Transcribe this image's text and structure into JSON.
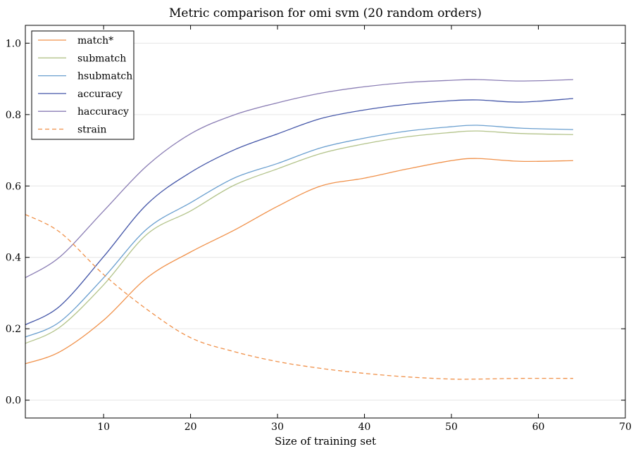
{
  "chart_data": {
    "type": "line",
    "title": "Metric comparison for omi svm (20 random orders)",
    "xlabel": "Size of training set",
    "ylabel": "",
    "xlim": [
      1,
      70
    ],
    "ylim": [
      -0.05,
      1.05
    ],
    "xticks": [
      10,
      20,
      30,
      40,
      50,
      60,
      70
    ],
    "yticks": [
      0.0,
      0.2,
      0.4,
      0.6,
      0.8,
      1.0
    ],
    "xtick_labels": [
      "10",
      "20",
      "30",
      "40",
      "50",
      "60",
      "70"
    ],
    "ytick_labels": [
      "0.0",
      "0.2",
      "0.4",
      "0.6",
      "0.8",
      "1.0"
    ],
    "grid": "horizontal",
    "legend_position": "top-left",
    "x": [
      1,
      5,
      10,
      15,
      20,
      25,
      30,
      35,
      40,
      45,
      50,
      53,
      58,
      64
    ],
    "series": [
      {
        "name": "match*",
        "color": "#f0914a",
        "dash": false,
        "values": [
          0.102,
          0.136,
          0.224,
          0.343,
          0.415,
          0.476,
          0.543,
          0.6,
          0.622,
          0.648,
          0.671,
          0.677,
          0.669,
          0.671
        ]
      },
      {
        "name": "submatch",
        "color": "#b3c38a",
        "dash": false,
        "values": [
          0.159,
          0.205,
          0.323,
          0.465,
          0.53,
          0.602,
          0.648,
          0.691,
          0.718,
          0.738,
          0.75,
          0.754,
          0.747,
          0.744
        ]
      },
      {
        "name": "hsubmatch",
        "color": "#6a9fcf",
        "dash": false,
        "values": [
          0.177,
          0.22,
          0.343,
          0.48,
          0.553,
          0.622,
          0.663,
          0.707,
          0.734,
          0.754,
          0.766,
          0.77,
          0.762,
          0.758
        ]
      },
      {
        "name": "accuracy",
        "color": "#4456a8",
        "dash": false,
        "values": [
          0.211,
          0.264,
          0.402,
          0.549,
          0.638,
          0.701,
          0.746,
          0.789,
          0.813,
          0.829,
          0.839,
          0.841,
          0.835,
          0.845
        ]
      },
      {
        "name": "haccuracy",
        "color": "#8a7db4",
        "dash": false,
        "values": [
          0.343,
          0.402,
          0.53,
          0.657,
          0.746,
          0.799,
          0.833,
          0.86,
          0.878,
          0.89,
          0.896,
          0.898,
          0.894,
          0.898
        ]
      },
      {
        "name": "strain",
        "color": "#f0914a",
        "dash": true,
        "values": [
          0.52,
          0.47,
          0.352,
          0.254,
          0.175,
          0.136,
          0.108,
          0.089,
          0.075,
          0.065,
          0.059,
          0.059,
          0.061,
          0.061
        ]
      }
    ]
  }
}
